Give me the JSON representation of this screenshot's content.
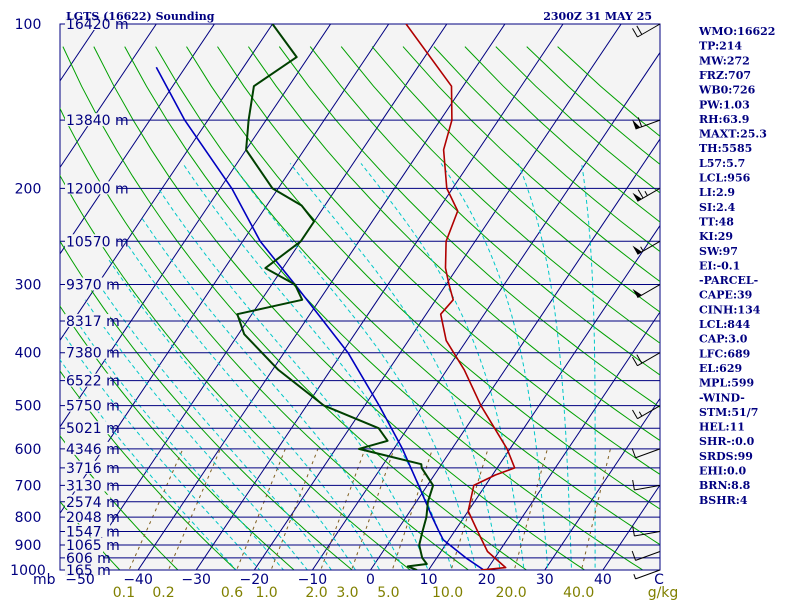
{
  "header": {
    "station": "LGTS (16622) Sounding",
    "time": "2300Z 31 MAY 25"
  },
  "chart_data": {
    "type": "skew-t",
    "pressure_axis": {
      "levels": [
        100,
        200,
        300,
        400,
        500,
        600,
        700,
        800,
        900,
        1000
      ],
      "labels": [
        "100",
        "200",
        "300",
        "400",
        "500",
        "600",
        "700",
        "800",
        "900",
        "1000"
      ],
      "unit_label": "mb"
    },
    "temperature_axis": {
      "values": [
        -50,
        -40,
        -30,
        -20,
        -10,
        0,
        10,
        20,
        30,
        40
      ],
      "labels": [
        "−50",
        "−40",
        "−30",
        "−20",
        "−10",
        "0",
        "10",
        "20",
        "30",
        "40"
      ],
      "unit_label": "C"
    },
    "mixing_ratio_axis": {
      "values": [
        0.1,
        0.2,
        0.6,
        1.0,
        2.0,
        3.0,
        5.0,
        10.0,
        20.0,
        40.0
      ],
      "labels": [
        "0.1",
        "0.2",
        "0.6",
        "1.0",
        "2.0",
        "3.0",
        "5.0",
        "10.0",
        "20.0",
        "40.0"
      ],
      "unit_label": "g/kg"
    },
    "heights": [
      {
        "p": 1000,
        "label": "165 m"
      },
      {
        "p": 950,
        "label": "606 m"
      },
      {
        "p": 900,
        "label": "1065 m"
      },
      {
        "p": 850,
        "label": "1547 m"
      },
      {
        "p": 800,
        "label": "2048 m"
      },
      {
        "p": 750,
        "label": "2574 m"
      },
      {
        "p": 700,
        "label": "3130 m"
      },
      {
        "p": 650,
        "label": "3716 m"
      },
      {
        "p": 600,
        "label": "4346 m"
      },
      {
        "p": 550,
        "label": "5021 m"
      },
      {
        "p": 500,
        "label": "5750 m"
      },
      {
        "p": 450,
        "label": "6522 m"
      },
      {
        "p": 400,
        "label": "7380 m"
      },
      {
        "p": 350,
        "label": "8317 m"
      },
      {
        "p": 300,
        "label": "9370 m"
      },
      {
        "p": 250,
        "label": "10570 m"
      },
      {
        "p": 200,
        "label": "12000 m"
      },
      {
        "p": 150,
        "label": "13840 m"
      },
      {
        "p": 100,
        "label": "16420 m"
      }
    ],
    "temperature_profile": [
      {
        "p": 1000,
        "t": 19
      },
      {
        "p": 990,
        "t": 23
      },
      {
        "p": 925,
        "t": 18
      },
      {
        "p": 850,
        "t": 14
      },
      {
        "p": 780,
        "t": 10
      },
      {
        "p": 700,
        "t": 8
      },
      {
        "p": 670,
        "t": 10.5
      },
      {
        "p": 650,
        "t": 13
      },
      {
        "p": 600,
        "t": 9.5
      },
      {
        "p": 500,
        "t": 0
      },
      {
        "p": 430,
        "t": -7
      },
      {
        "p": 380,
        "t": -13.5
      },
      {
        "p": 340,
        "t": -17.5
      },
      {
        "p": 320,
        "t": -17
      },
      {
        "p": 300,
        "t": -19.5
      },
      {
        "p": 280,
        "t": -22
      },
      {
        "p": 250,
        "t": -25
      },
      {
        "p": 220,
        "t": -26.5
      },
      {
        "p": 200,
        "t": -31
      },
      {
        "p": 170,
        "t": -36
      },
      {
        "p": 150,
        "t": -38
      },
      {
        "p": 130,
        "t": -42
      },
      {
        "p": 100,
        "t": -57
      }
    ],
    "dewpoint_profile": [
      {
        "p": 1000,
        "t": 8
      },
      {
        "p": 985,
        "t": 6
      },
      {
        "p": 975,
        "t": 9
      },
      {
        "p": 950,
        "t": 7.5
      },
      {
        "p": 900,
        "t": 5.5
      },
      {
        "p": 850,
        "t": 4.5
      },
      {
        "p": 800,
        "t": 3.5
      },
      {
        "p": 750,
        "t": 2
      },
      {
        "p": 700,
        "t": 1
      },
      {
        "p": 650,
        "t": -3
      },
      {
        "p": 640,
        "t": -3.5
      },
      {
        "p": 600,
        "t": -16
      },
      {
        "p": 580,
        "t": -12
      },
      {
        "p": 550,
        "t": -15
      },
      {
        "p": 500,
        "t": -27
      },
      {
        "p": 430,
        "t": -39
      },
      {
        "p": 370,
        "t": -49
      },
      {
        "p": 340,
        "t": -52.5
      },
      {
        "p": 320,
        "t": -43
      },
      {
        "p": 300,
        "t": -46
      },
      {
        "p": 280,
        "t": -53
      },
      {
        "p": 250,
        "t": -50
      },
      {
        "p": 230,
        "t": -50
      },
      {
        "p": 215,
        "t": -54
      },
      {
        "p": 200,
        "t": -61
      },
      {
        "p": 170,
        "t": -70
      },
      {
        "p": 150,
        "t": -73
      },
      {
        "p": 130,
        "t": -76
      },
      {
        "p": 115,
        "t": -72
      },
      {
        "p": 100,
        "t": -80
      }
    ],
    "parcel_profile": [
      {
        "p": 1000,
        "t": 19.5
      },
      {
        "p": 950,
        "t": 15
      },
      {
        "p": 880,
        "t": 9
      },
      {
        "p": 844,
        "t": 7
      },
      {
        "p": 800,
        "t": 4.5
      },
      {
        "p": 700,
        "t": -1.5
      },
      {
        "p": 600,
        "t": -8.5
      },
      {
        "p": 500,
        "t": -17.5
      },
      {
        "p": 400,
        "t": -29
      },
      {
        "p": 300,
        "t": -46
      },
      {
        "p": 250,
        "t": -57
      },
      {
        "p": 200,
        "t": -68
      },
      {
        "p": 150,
        "t": -84
      },
      {
        "p": 120,
        "t": -95
      }
    ],
    "wind_barbs": [
      {
        "p": 1000,
        "dir": 250,
        "spd": 5
      },
      {
        "p": 925,
        "dir": 250,
        "spd": 10
      },
      {
        "p": 850,
        "dir": 260,
        "spd": 10
      },
      {
        "p": 700,
        "dir": 260,
        "spd": 10
      },
      {
        "p": 600,
        "dir": 250,
        "spd": 10
      },
      {
        "p": 500,
        "dir": 240,
        "spd": 15
      },
      {
        "p": 400,
        "dir": 240,
        "spd": 20
      },
      {
        "p": 300,
        "dir": 240,
        "spd": 50
      },
      {
        "p": 250,
        "dir": 240,
        "spd": 55
      },
      {
        "p": 200,
        "dir": 240,
        "spd": 65
      },
      {
        "p": 150,
        "dir": 250,
        "spd": 60
      },
      {
        "p": 100,
        "dir": 240,
        "spd": 20
      }
    ],
    "indices": [
      "WMO:16622",
      "TP:214",
      "MW:272",
      "FRZ:707",
      "WB0:726",
      "PW:1.03",
      "RH:63.9",
      "MAXT:25.3",
      "TH:5585",
      "L57:5.7",
      "LCL:956",
      "LI:2.9",
      "SI:2.4",
      "TT:48",
      "KI:29",
      "SW:97",
      "EI:-0.1",
      "-PARCEL-",
      "CAPE:39",
      "CINH:134",
      "LCL:844",
      "CAP:3.0",
      "LFC:689",
      "EL:629",
      "MPL:599",
      "-WIND-",
      "STM:51/7",
      "HEL:11",
      "SHR-:0.0",
      "SRDS:99",
      "EHI:0.0",
      "BRN:8.8",
      "BSHR:4"
    ],
    "colors": {
      "isobar": "#000080",
      "isotherm": "#000080",
      "dry_adiabat": "#00a000",
      "moist_adiabat": "#00c8c8",
      "mixing_ratio": "#806020",
      "temperature": "#b00000",
      "dewpoint": "#004000",
      "parcel": "#0000c0",
      "temp_axis_text": "#000080",
      "mixing_text": "#808000"
    }
  }
}
